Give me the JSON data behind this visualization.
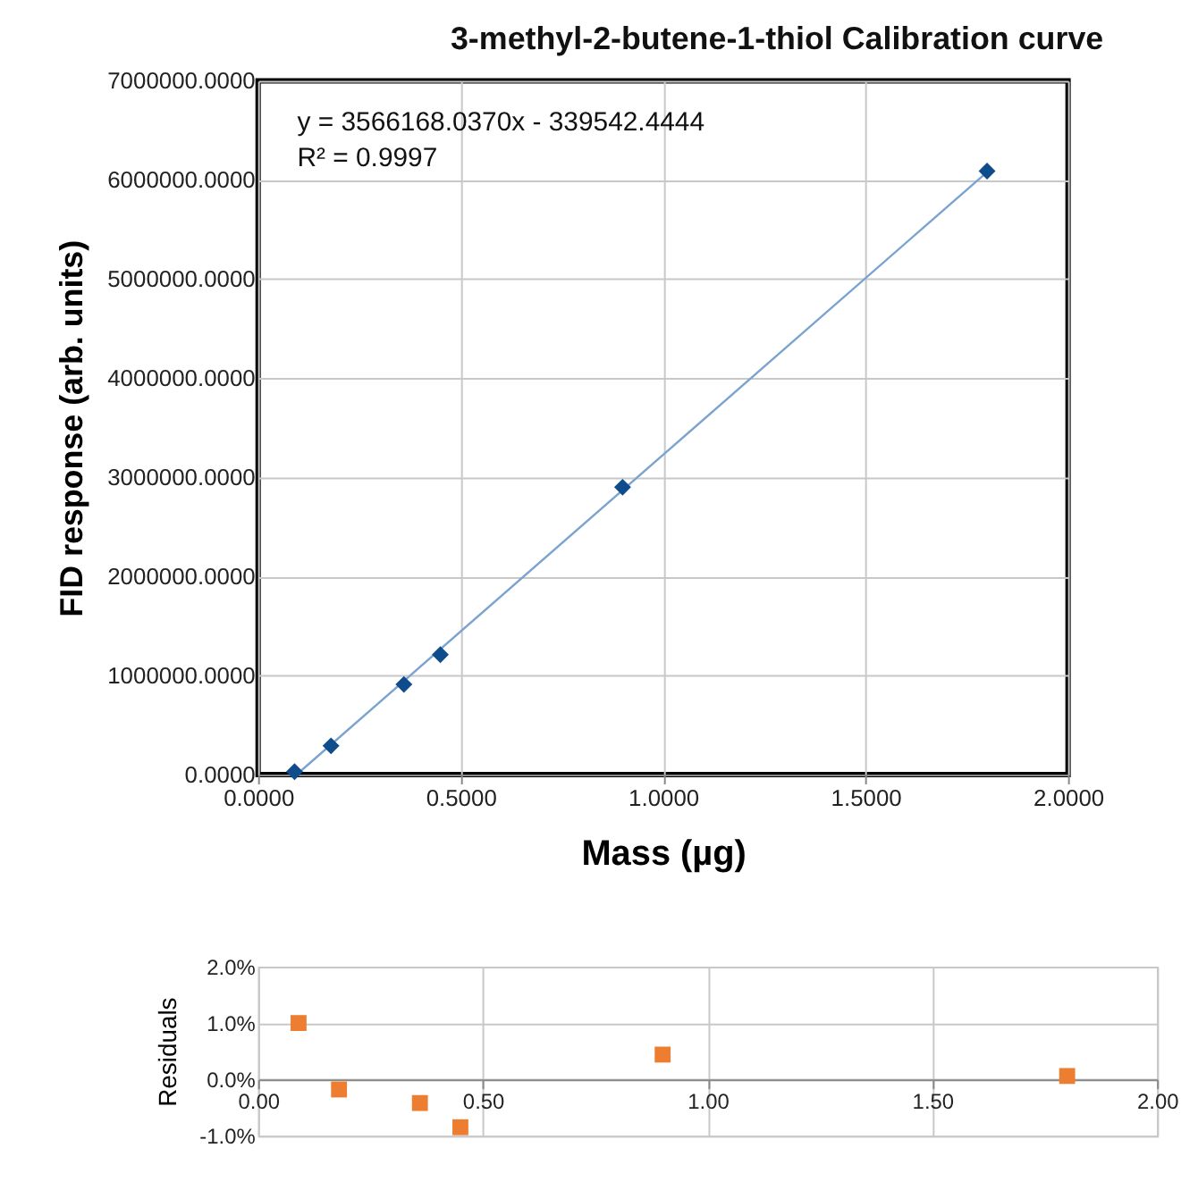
{
  "chart_data": [
    {
      "type": "scatter",
      "title": "3-methyl-2-butene-1-thiol  Calibration curve",
      "xlabel": "Mass (µg)",
      "ylabel": "FID response (arb. units)",
      "annotations": [
        "y = 3566168.0370x - 339542.4444",
        "R² = 0.9997"
      ],
      "xlim": [
        0,
        2
      ],
      "xticks": [
        {
          "value": 0,
          "label": "0.0000"
        },
        {
          "value": 0.5,
          "label": "0.5000"
        },
        {
          "value": 1,
          "label": "1.0000"
        },
        {
          "value": 1.5,
          "label": "1.5000"
        },
        {
          "value": 2,
          "label": "2.0000"
        }
      ],
      "ylim": [
        0,
        7000000
      ],
      "yticks": [
        {
          "value": 0,
          "label": "0.0000"
        },
        {
          "value": 1000000,
          "label": "1000000.0000"
        },
        {
          "value": 2000000,
          "label": "2000000.0000"
        },
        {
          "value": 3000000,
          "label": "3000000.0000"
        },
        {
          "value": 4000000,
          "label": "4000000.0000"
        },
        {
          "value": 5000000,
          "label": "5000000.0000"
        },
        {
          "value": 6000000,
          "label": "6000000.0000"
        },
        {
          "value": 7000000,
          "label": "7000000.0000"
        }
      ],
      "grid": true,
      "series": [
        {
          "type": "line",
          "color": "#7ba3cf",
          "marker": "none",
          "x": [
            0.0952,
            1.8
          ],
          "values": [
            0,
            6079560
          ]
        },
        {
          "color": "#0f4c8c",
          "marker": "diamond",
          "x": [
            0.09,
            0.18,
            0.36,
            0.45,
            0.9,
            1.8
          ],
          "values": [
            30000,
            290000,
            910000,
            1210000,
            2900000,
            6090000
          ]
        }
      ]
    },
    {
      "type": "scatter",
      "ylabel": "Residuals",
      "xlim": [
        0,
        2
      ],
      "xticks": [
        {
          "value": 0,
          "label": "0.00"
        },
        {
          "value": 0.5,
          "label": "0.50"
        },
        {
          "value": 1,
          "label": "1.00"
        },
        {
          "value": 1.5,
          "label": "1.50"
        },
        {
          "value": 2,
          "label": "2.00"
        }
      ],
      "ylim": [
        -1,
        2
      ],
      "yticks": [
        {
          "value": -1,
          "label": "-1.0%"
        },
        {
          "value": 0,
          "label": "0.0%"
        },
        {
          "value": 1,
          "label": "1.0%"
        },
        {
          "value": 2,
          "label": "2.0%"
        }
      ],
      "grid": true,
      "series": [
        {
          "color": "#ed7d31",
          "marker": "square",
          "x": [
            0.09,
            0.18,
            0.36,
            0.45,
            0.9,
            1.8
          ],
          "values": [
            1.0,
            -0.18,
            -0.42,
            -0.85,
            0.44,
            0.06
          ]
        }
      ]
    }
  ]
}
